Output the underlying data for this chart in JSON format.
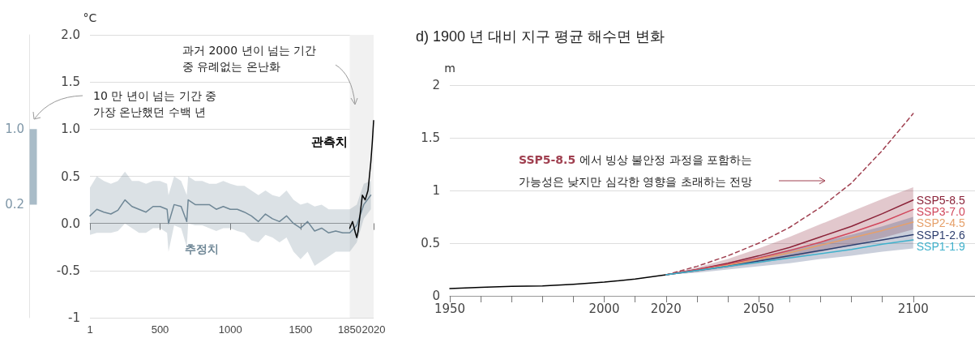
{
  "chart_data": [
    {
      "type": "line",
      "ylabel": "°C",
      "xlim": [
        1,
        2020
      ],
      "xticks": [
        1,
        500,
        1000,
        1500,
        1850,
        2020
      ],
      "ylim": [
        -1,
        2
      ],
      "yticks": [
        {
          "value": -1,
          "label": "-1"
        },
        {
          "value": -0.5,
          "label": "-0.5"
        },
        {
          "value": 0,
          "label": "0.0"
        },
        {
          "value": 0.5,
          "label": "0.5"
        },
        {
          "value": 1,
          "label": "1.0"
        },
        {
          "value": 1.5,
          "label": "1.5"
        },
        {
          "value": 2,
          "label": "2.0"
        }
      ],
      "grid": "y",
      "legend": false,
      "bands": [
        {
          "axis": "x",
          "from": 1850,
          "to": 2020,
          "color": "#f1f1f1"
        }
      ],
      "annotations": [
        "과거 2000 년이 넘는 기간\n중 유례없는 온난화",
        "10 만 년이 넘는 기간 중\n가장 온난했던 수백 년"
      ],
      "series": [
        {
          "name": "추정치",
          "color": "#6f8796",
          "x": [
            1,
            50,
            100,
            150,
            200,
            250,
            300,
            350,
            400,
            450,
            500,
            550,
            560,
            600,
            650,
            690,
            700,
            750,
            800,
            850,
            900,
            950,
            1000,
            1050,
            1100,
            1150,
            1200,
            1250,
            1300,
            1350,
            1400,
            1450,
            1500,
            1550,
            1600,
            1650,
            1700,
            1750,
            1800,
            1850,
            1900,
            1950,
            2000
          ],
          "values": [
            0.08,
            0.15,
            0.12,
            0.1,
            0.14,
            0.25,
            0.18,
            0.15,
            0.12,
            0.18,
            0.18,
            0.15,
            0.0,
            0.2,
            0.18,
            0.02,
            0.25,
            0.2,
            0.2,
            0.2,
            0.15,
            0.18,
            0.15,
            0.15,
            0.12,
            0.08,
            0.02,
            0.1,
            0.05,
            0.02,
            0.08,
            0.0,
            -0.05,
            0.02,
            -0.08,
            -0.05,
            -0.1,
            -0.08,
            -0.1,
            -0.1,
            -0.02,
            0.2,
            0.3
          ],
          "lower": [
            -0.12,
            -0.1,
            -0.1,
            -0.1,
            -0.08,
            0.0,
            -0.05,
            -0.1,
            -0.1,
            -0.05,
            -0.05,
            -0.1,
            -0.3,
            -0.02,
            -0.05,
            -0.25,
            0.0,
            -0.02,
            -0.02,
            -0.05,
            -0.08,
            -0.05,
            -0.05,
            -0.08,
            -0.1,
            -0.18,
            -0.2,
            -0.12,
            -0.15,
            -0.2,
            -0.15,
            -0.3,
            -0.38,
            -0.3,
            -0.45,
            -0.4,
            -0.35,
            -0.3,
            -0.3,
            -0.3,
            -0.2,
            0.05,
            0.15
          ],
          "upper": [
            0.38,
            0.5,
            0.45,
            0.42,
            0.45,
            0.55,
            0.45,
            0.45,
            0.42,
            0.45,
            0.45,
            0.42,
            0.3,
            0.5,
            0.45,
            0.3,
            0.5,
            0.45,
            0.45,
            0.42,
            0.42,
            0.45,
            0.42,
            0.4,
            0.4,
            0.35,
            0.3,
            0.35,
            0.3,
            0.28,
            0.35,
            0.25,
            0.2,
            0.22,
            0.18,
            0.2,
            0.15,
            0.15,
            0.15,
            0.15,
            0.2,
            0.42,
            0.45
          ]
        },
        {
          "name": "관측치",
          "color": "#000000",
          "x": [
            1850,
            1870,
            1890,
            1900,
            1910,
            1920,
            1940,
            1960,
            1980,
            1990,
            2000,
            2010,
            2020
          ],
          "values": [
            -0.05,
            0.02,
            -0.1,
            -0.15,
            -0.08,
            0.05,
            0.3,
            0.25,
            0.35,
            0.5,
            0.65,
            0.85,
            1.09
          ]
        }
      ]
    },
    {
      "type": "bar",
      "categories": [
        null
      ],
      "base": [
        0.2
      ],
      "values": [
        0.8
      ],
      "colors": [
        "#a9bcc8"
      ],
      "ylim": [
        -1,
        2
      ],
      "yticks": [
        {
          "value": 0.2,
          "label": "0.2"
        },
        {
          "value": 1,
          "label": "1.0"
        }
      ],
      "tick_labels": "y",
      "grid": false,
      "legend": false
    },
    {
      "type": "line",
      "title": "d) 1900 년 대비 지구 평균 해수면 변화",
      "ylabel": "m",
      "xlim": [
        1950,
        2120
      ],
      "xticks": [
        1950,
        {
          "value": 1960,
          "label": null
        },
        {
          "value": 1970,
          "label": null
        },
        {
          "value": 1980,
          "label": null
        },
        {
          "value": 1990,
          "label": null
        },
        2000,
        {
          "value": 2010,
          "label": null
        },
        2020,
        {
          "value": 2030,
          "label": null
        },
        {
          "value": 2040,
          "label": null
        },
        2050,
        {
          "value": 2060,
          "label": null
        },
        {
          "value": 2070,
          "label": null
        },
        {
          "value": 2080,
          "label": null
        },
        {
          "value": 2090,
          "label": null
        },
        2100
      ],
      "ylim": [
        0,
        2
      ],
      "yticks": [
        0,
        0.5,
        1,
        1.5,
        2
      ],
      "grid": "y",
      "legend": false,
      "annotations": [
        "SSP5-8.5 에서 빙상 불안정 과정을 포함하는\n가능성은 낮지만 심각한 영향을 초래하는 전망"
      ],
      "series": [
        {
          "color": "#000000",
          "x": [
            1950,
            1960,
            1970,
            1980,
            1990,
            2000,
            2010,
            2020
          ],
          "values": [
            0.07,
            0.08,
            0.09,
            0.095,
            0.11,
            0.13,
            0.16,
            0.2
          ]
        },
        {
          "color": "#a04050",
          "line_style": "dashed",
          "x": [
            2020,
            2030,
            2040,
            2050,
            2060,
            2070,
            2080,
            2090,
            2100
          ],
          "values": [
            0.2,
            0.28,
            0.38,
            0.5,
            0.65,
            0.84,
            1.07,
            1.38,
            1.73
          ]
        },
        {
          "name": "SSP5-8.5",
          "color": "#8b2339",
          "x": [
            2020,
            2030,
            2040,
            2050,
            2060,
            2070,
            2080,
            2090,
            2100
          ],
          "values": [
            0.2,
            0.25,
            0.31,
            0.38,
            0.46,
            0.56,
            0.66,
            0.78,
            0.91
          ],
          "lower": [
            0.2,
            0.23,
            0.27,
            0.31,
            0.36,
            0.42,
            0.48,
            0.55,
            0.63
          ],
          "upper": [
            0.2,
            0.27,
            0.35,
            0.45,
            0.56,
            0.68,
            0.8,
            0.92,
            1.03
          ]
        },
        {
          "name": "SSP3-7.0",
          "color": "#d1475c",
          "x": [
            2020,
            2030,
            2040,
            2050,
            2060,
            2070,
            2080,
            2090,
            2100
          ],
          "values": [
            0.2,
            0.25,
            0.3,
            0.36,
            0.43,
            0.51,
            0.6,
            0.7,
            0.82
          ]
        },
        {
          "name": "SSP2-4.5",
          "color": "#e6a06a",
          "x": [
            2020,
            2030,
            2040,
            2050,
            2060,
            2070,
            2080,
            2090,
            2100
          ],
          "values": [
            0.2,
            0.24,
            0.29,
            0.35,
            0.41,
            0.48,
            0.55,
            0.62,
            0.7
          ]
        },
        {
          "name": "SSP1-2.6",
          "color": "#2d3e6e",
          "x": [
            2020,
            2030,
            2040,
            2050,
            2060,
            2070,
            2080,
            2090,
            2100
          ],
          "values": [
            0.2,
            0.24,
            0.28,
            0.33,
            0.38,
            0.43,
            0.48,
            0.53,
            0.58
          ],
          "lower": [
            0.2,
            0.22,
            0.25,
            0.28,
            0.31,
            0.35,
            0.38,
            0.42,
            0.45
          ],
          "upper": [
            0.2,
            0.26,
            0.31,
            0.37,
            0.44,
            0.51,
            0.58,
            0.66,
            0.75
          ]
        },
        {
          "name": "SSP1-1.9",
          "color": "#3fb1cc",
          "x": [
            2020,
            2030,
            2040,
            2050,
            2060,
            2070,
            2080,
            2090,
            2100
          ],
          "values": [
            0.2,
            0.24,
            0.28,
            0.32,
            0.36,
            0.4,
            0.44,
            0.49,
            0.53
          ]
        }
      ]
    }
  ]
}
